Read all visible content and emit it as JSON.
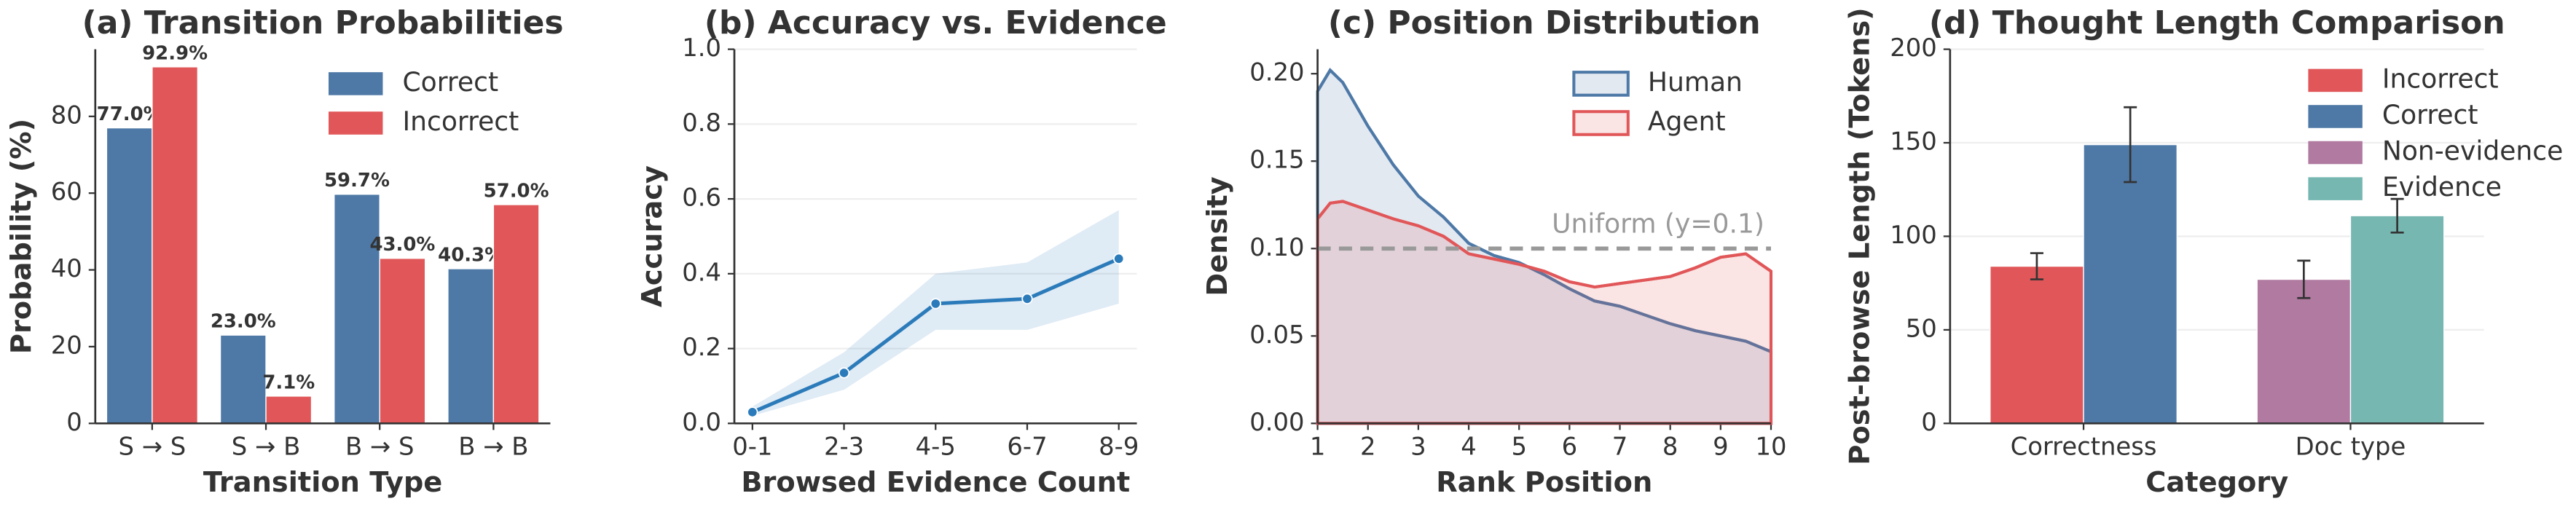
{
  "chart_data": [
    {
      "type": "bar",
      "title": "(a) Transition Probabilities",
      "x_label": "Transition Type",
      "y_label": "Probability (%)",
      "categories": [
        "S → S",
        "S → B",
        "B → S",
        "B → B"
      ],
      "series": [
        {
          "name": "Correct",
          "color": "#4e79a7",
          "values": [
            77.0,
            23.0,
            59.7,
            40.3
          ],
          "value_labels": [
            "77.0%",
            "23.0%",
            "59.7%",
            "40.3%"
          ]
        },
        {
          "name": "Incorrect",
          "color": "#e15759",
          "values": [
            92.9,
            7.1,
            43.0,
            57.0
          ],
          "value_labels": [
            "92.9%",
            "7.1%",
            "43.0%",
            "57.0%"
          ]
        }
      ],
      "ylim": [
        0,
        97.5
      ],
      "yticks": [
        0,
        20,
        40,
        60,
        80
      ],
      "legend": "upper right"
    },
    {
      "type": "line",
      "title": "(b) Accuracy vs. Evidence",
      "x_label": "Browsed Evidence Count",
      "y_label": "Accuracy",
      "categories": [
        "0-1",
        "2-3",
        "4-5",
        "6-7",
        "8-9"
      ],
      "series": [
        {
          "color": "#2b7bba",
          "values": [
            0.03,
            0.135,
            0.32,
            0.333,
            0.44
          ],
          "ci_low": [
            0.02,
            0.09,
            0.25,
            0.25,
            0.32
          ],
          "ci_high": [
            0.045,
            0.19,
            0.4,
            0.43,
            0.57
          ]
        }
      ],
      "ylim": [
        0,
        1
      ],
      "yticks": [
        {
          "value": 0,
          "label": "0.0"
        },
        {
          "value": 0.2,
          "label": "0.2"
        },
        {
          "value": 0.4,
          "label": "0.4"
        },
        {
          "value": 0.6,
          "label": "0.6"
        },
        {
          "value": 0.8,
          "label": "0.8"
        },
        {
          "value": 1,
          "label": "1.0"
        }
      ],
      "grid": true
    },
    {
      "type": "area",
      "title": "(c) Position Distribution",
      "x_label": "Rank Position",
      "y_label": "Density",
      "x": [
        1,
        1.25,
        1.5,
        2,
        2.5,
        3,
        3.5,
        4,
        4.5,
        5,
        5.5,
        6,
        6.5,
        7,
        7.5,
        8,
        8.5,
        9,
        9.5,
        10
      ],
      "series": [
        {
          "name": "Human",
          "color": "#4e79a7",
          "values": [
            0.19,
            0.202,
            0.195,
            0.17,
            0.148,
            0.13,
            0.118,
            0.103,
            0.096,
            0.092,
            0.085,
            0.077,
            0.07,
            0.067,
            0.062,
            0.057,
            0.053,
            0.05,
            0.047,
            0.041
          ]
        },
        {
          "name": "Agent",
          "color": "#e15759",
          "values": [
            0.117,
            0.126,
            0.127,
            0.122,
            0.117,
            0.113,
            0.107,
            0.097,
            0.094,
            0.091,
            0.087,
            0.081,
            0.078,
            0.08,
            0.082,
            0.084,
            0.089,
            0.095,
            0.097,
            0.087
          ]
        }
      ],
      "xlim": [
        1,
        10
      ],
      "xticks": [
        1,
        2,
        3,
        4,
        5,
        6,
        7,
        8,
        9,
        10
      ],
      "ylim": [
        0,
        0.214
      ],
      "yticks": [
        {
          "value": 0,
          "label": "0.00"
        },
        {
          "value": 0.05,
          "label": "0.05"
        },
        {
          "value": 0.1,
          "label": "0.10"
        },
        {
          "value": 0.15,
          "label": "0.15"
        },
        {
          "value": 0.2,
          "label": "0.20"
        }
      ],
      "reference_line": {
        "value": 0.1,
        "label": "Uniform (y=0.1)",
        "color": "#999999"
      },
      "legend": "upper right"
    },
    {
      "type": "bar",
      "title": "(d) Thought Length Comparison",
      "x_label": "Category",
      "y_label": "Post-browse Length (Tokens)",
      "categories": [
        "Correctness",
        "Doc type"
      ],
      "series": [
        {
          "name": "Incorrect",
          "color": "#e15759",
          "values": [
            84,
            null
          ],
          "errors": [
            7,
            null
          ]
        },
        {
          "name": "Correct",
          "color": "#4e79a7",
          "values": [
            149,
            null
          ],
          "errors": [
            20,
            null
          ]
        },
        {
          "name": "Non-evidence",
          "color": "#b07aa1",
          "values": [
            null,
            77
          ],
          "errors": [
            null,
            10
          ]
        },
        {
          "name": "Evidence",
          "color": "#76b7b2",
          "values": [
            null,
            111
          ],
          "errors": [
            null,
            9
          ]
        }
      ],
      "ylim": [
        0,
        200
      ],
      "yticks": [
        0,
        50,
        100,
        150,
        200
      ],
      "grid": true,
      "legend": "upper right"
    }
  ]
}
